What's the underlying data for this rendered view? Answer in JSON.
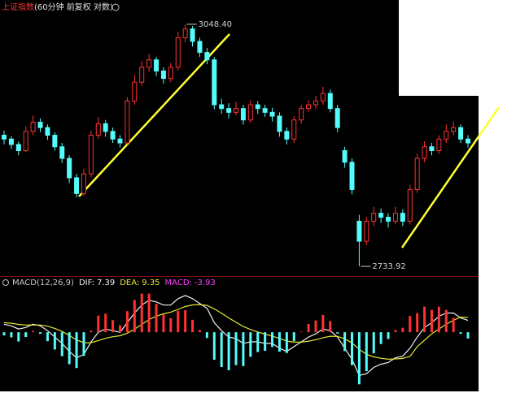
{
  "chart_data": {
    "type": "candlestick",
    "title": "上证指数",
    "subtitle": "(60分钟 前复权 对数)",
    "log_scale": true,
    "ylim": [
      2722,
      3065
    ],
    "up_color": "#ff3232",
    "down_color": "#54fcfc",
    "open": [
      2900,
      2895,
      2888,
      2880,
      2905,
      2917,
      2910,
      2900,
      2885,
      2870,
      2845,
      2825,
      2850,
      2900,
      2915,
      2905,
      2895,
      2890,
      2945,
      2970,
      2990,
      3000,
      2985,
      2975,
      2990,
      3030,
      3042,
      3025,
      3010,
      3000,
      2940,
      2935,
      2930,
      2935,
      2920,
      2940,
      2935,
      2930,
      2925,
      2905,
      2895,
      2920,
      2935,
      2940,
      2945,
      2955,
      2935,
      2880,
      2865,
      2790,
      2765,
      2790,
      2800,
      2795,
      2790,
      2800,
      2790,
      2830,
      2870,
      2885,
      2880,
      2895,
      2905,
      2910,
      2895
    ],
    "high": [
      2906,
      2899,
      2892,
      2912,
      2926,
      2922,
      2914,
      2904,
      2890,
      2874,
      2850,
      2856,
      2906,
      2924,
      2920,
      2910,
      2900,
      2950,
      2980,
      2998,
      3008,
      3004,
      2990,
      2996,
      3038,
      3048.4,
      3046,
      3030,
      3016,
      3004,
      2948,
      2942,
      2944,
      2940,
      2946,
      2945,
      2940,
      2936,
      2930,
      2910,
      2925,
      2940,
      2946,
      2952,
      2964,
      2960,
      2940,
      2885,
      2870,
      2798,
      2795,
      2808,
      2806,
      2800,
      2808,
      2805,
      2836,
      2876,
      2892,
      2890,
      2900,
      2914,
      2918,
      2914,
      2900
    ],
    "low": [
      2888,
      2882,
      2874,
      2878,
      2900,
      2904,
      2894,
      2880,
      2864,
      2838,
      2820,
      2822,
      2846,
      2895,
      2898,
      2890,
      2884,
      2888,
      2940,
      2965,
      2984,
      2978,
      2968,
      2970,
      2986,
      3024,
      3018,
      3004,
      2994,
      2934,
      2928,
      2922,
      2926,
      2914,
      2916,
      2928,
      2924,
      2918,
      2898,
      2888,
      2890,
      2915,
      2930,
      2934,
      2940,
      2930,
      2904,
      2858,
      2824,
      2733.92,
      2760,
      2784,
      2788,
      2782,
      2786,
      2784,
      2786,
      2826,
      2865,
      2874,
      2876,
      2890,
      2900,
      2890,
      2884
    ],
    "close": [
      2895,
      2888,
      2880,
      2905,
      2917,
      2910,
      2900,
      2885,
      2870,
      2845,
      2825,
      2850,
      2900,
      2915,
      2905,
      2895,
      2890,
      2945,
      2970,
      2990,
      3000,
      2985,
      2975,
      2990,
      3030,
      3042,
      3025,
      3010,
      3000,
      2940,
      2935,
      2930,
      2935,
      2920,
      2940,
      2935,
      2930,
      2925,
      2905,
      2895,
      2920,
      2935,
      2940,
      2945,
      2955,
      2935,
      2910,
      2865,
      2830,
      2765,
      2790,
      2800,
      2795,
      2790,
      2800,
      2790,
      2830,
      2870,
      2885,
      2880,
      2895,
      2905,
      2910,
      2895,
      2890
    ],
    "annotations": [
      {
        "value": 3048.4,
        "label": "3048.40"
      },
      {
        "value": 2733.92,
        "label": "2733.92"
      }
    ],
    "macd": {
      "type": "macd",
      "title": "MACD(12,26,9)",
      "ylim": [
        -36,
        26
      ],
      "series": [
        {
          "name": "DIF:",
          "color": "#f0f0f0",
          "values": [
            5,
            4,
            2,
            3,
            5,
            4,
            1,
            -3,
            -7,
            -12,
            -16,
            -14,
            -6,
            0,
            2,
            1,
            0,
            6,
            12,
            17,
            20,
            19,
            17,
            17,
            21,
            23,
            21,
            18,
            15,
            6,
            1,
            -3,
            -4,
            -7,
            -6,
            -6,
            -7,
            -7,
            -10,
            -12,
            -9,
            -6,
            -3,
            -1,
            2,
            1,
            -3,
            -10,
            -17,
            -27,
            -26,
            -22,
            -20,
            -19,
            -16,
            -15,
            -10,
            -3,
            3,
            6,
            10,
            12,
            12,
            9,
            7.39
          ]
        },
        {
          "name": "DEA:",
          "color": "#e6e632",
          "values": [
            6,
            5.6,
            4.9,
            4.5,
            4.6,
            4.5,
            3.8,
            2.4,
            0.5,
            -2,
            -4.8,
            -6.6,
            -6.5,
            -5.2,
            -3.8,
            -2.8,
            -2.2,
            -0.6,
            1.9,
            4.9,
            7.9,
            10.1,
            11.5,
            12.6,
            14.3,
            16.1,
            17.1,
            17.3,
            16.8,
            14.6,
            11.9,
            8.9,
            6.3,
            3.6,
            1.7,
            0.2,
            -1.2,
            -2.4,
            -3.9,
            -5.5,
            -6.2,
            -6.2,
            -5.6,
            -4.7,
            -3.4,
            -2.5,
            -2.6,
            -4.1,
            -6.7,
            -10.7,
            -13.8,
            -15.4,
            -16.3,
            -16.9,
            -16.7,
            -16.4,
            -15.1,
            -9,
            -5,
            -1,
            2,
            5,
            7.5,
            9.5,
            9.35
          ]
        },
        {
          "name": "MACD:",
          "color": "#ff40ff",
          "type": "bar",
          "values": [
            -2,
            -3.2,
            -5.8,
            -3,
            0.8,
            -1,
            -5.6,
            -10.8,
            -15,
            -20,
            -22.4,
            -14.8,
            1,
            10.4,
            11.6,
            7.6,
            4.4,
            13.2,
            20.2,
            24.2,
            24.2,
            17.8,
            11,
            8.8,
            13.4,
            13.8,
            7.8,
            1.4,
            -3.6,
            -17.2,
            -21.8,
            -23.8,
            -20.6,
            -21.2,
            -15.4,
            -12.4,
            -11.6,
            -9.2,
            -12.2,
            -13,
            -5.6,
            0.4,
            5.2,
            7.4,
            10.8,
            7,
            -0.8,
            -11.8,
            -20.6,
            -32.6,
            -24.4,
            -13.2,
            -7.4,
            -4.2,
            1.4,
            2.8,
            10.2,
            12,
            16,
            14,
            16,
            14,
            9,
            -1,
            -3.93
          ]
        }
      ]
    }
  }
}
